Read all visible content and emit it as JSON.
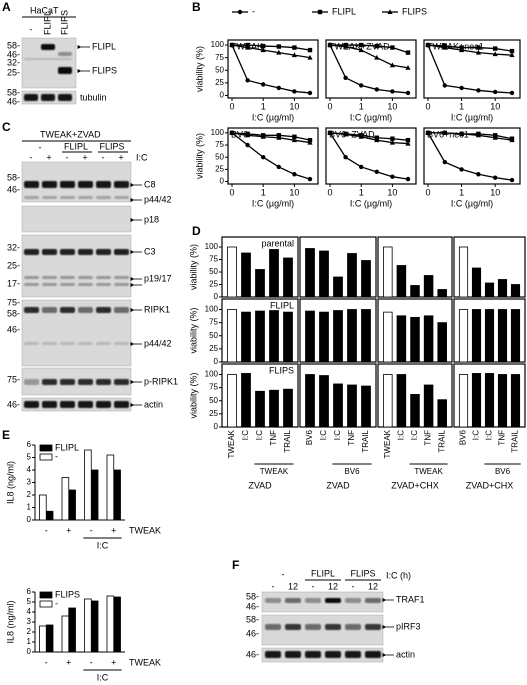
{
  "blot_a": {
    "panel": "A",
    "cell_line": "HaCaT",
    "lanes": [
      "-",
      "FLIPL",
      "FLIPS"
    ],
    "markers": [
      "58-",
      "46-",
      "32-",
      "25-",
      "58-",
      "46-"
    ],
    "labels": [
      "FLIPL",
      "FLIPS",
      "tubulin"
    ]
  },
  "blot_c": {
    "panel": "C",
    "treatment": "TWEAK+ZVAD",
    "lanes": [
      "-",
      "FLIPL",
      "FLIPS"
    ],
    "ic_lanes": [
      "-",
      "+",
      "-",
      "+",
      "-",
      "+"
    ],
    "ic_label": "I:C",
    "markers": [
      "58-",
      "46-",
      "32-",
      "25-",
      "17-",
      "75-",
      "58-",
      "46-",
      "75-",
      "46-"
    ],
    "labels": [
      "C8",
      "p44/42",
      "p18",
      "C3",
      "p19/17",
      "RIPK1",
      "p44/42",
      "p-RIPK1",
      "actin"
    ]
  },
  "blot_f": {
    "panel": "F",
    "lanes": [
      "-",
      "FLIPL",
      "FLIPS"
    ],
    "time_lanes": [
      "-",
      "12",
      "-",
      "12",
      "-",
      "12"
    ],
    "time_label": "I:C (h)",
    "markers": [
      "58-",
      "46-",
      "58-",
      "46-",
      "46-"
    ],
    "labels": [
      "TRAF1",
      "pIRF3",
      "actin"
    ]
  },
  "panels": {
    "b": "B",
    "d": "D",
    "e": "E"
  },
  "chart_data": [
    {
      "type": "line",
      "title": "TWEAK",
      "ylabel": "viability (%)",
      "xlabel": "I:C (µg/ml)",
      "categories": [
        "0",
        null,
        "1",
        null,
        "10",
        null
      ],
      "ylim": [
        -5,
        110
      ],
      "yticks": [
        0,
        25,
        50,
        75,
        100
      ],
      "series": [
        {
          "name": "-",
          "color": "#000000",
          "marker": "circle",
          "values": [
            100,
            30,
            22,
            15,
            8,
            5
          ]
        },
        {
          "name": "FLIPL",
          "color": "#000000",
          "marker": "square",
          "values": [
            100,
            100,
            98,
            97,
            95,
            90
          ]
        },
        {
          "name": "FLIPS",
          "color": "#000000",
          "marker": "triangle",
          "values": [
            100,
            95,
            90,
            85,
            80,
            75
          ]
        }
      ]
    },
    {
      "type": "line",
      "title": "TWEAK+ZVAD",
      "xlabel": "I:C (µg/ml)",
      "categories": [
        "0",
        null,
        "1",
        null,
        "10",
        null
      ],
      "ylim": [
        -5,
        110
      ],
      "series": [
        {
          "color": "#000000",
          "marker": "circle",
          "values": [
            100,
            35,
            20,
            12,
            8,
            5
          ]
        },
        {
          "color": "#000000",
          "marker": "square",
          "values": [
            100,
            100,
            100,
            98,
            95,
            85
          ]
        },
        {
          "color": "#000000",
          "marker": "triangle",
          "values": [
            100,
            97,
            90,
            75,
            60,
            55
          ]
        }
      ]
    },
    {
      "type": "line",
      "title": "TWEAK+nec1",
      "xlabel": "I:C (µg/ml)",
      "categories": [
        "0",
        null,
        "1",
        null,
        "10",
        null
      ],
      "ylim": [
        -5,
        110
      ],
      "series": [
        {
          "color": "#000000",
          "marker": "circle",
          "values": [
            100,
            20,
            15,
            10,
            7,
            5
          ]
        },
        {
          "color": "#000000",
          "marker": "square",
          "values": [
            100,
            98,
            95,
            95,
            93,
            88
          ]
        },
        {
          "color": "#000000",
          "marker": "triangle",
          "values": [
            100,
            95,
            90,
            85,
            82,
            80
          ]
        }
      ]
    },
    {
      "type": "line",
      "title": "BV6",
      "ylabel": "viability (%)",
      "xlabel": "I:C (µg/ml)",
      "categories": [
        "0",
        null,
        "1",
        null,
        "10",
        null
      ],
      "ylim": [
        -5,
        110
      ],
      "yticks": [
        0,
        25,
        50,
        75,
        100
      ],
      "series": [
        {
          "color": "#000000",
          "marker": "circle",
          "values": [
            100,
            75,
            50,
            30,
            15,
            5
          ]
        },
        {
          "color": "#000000",
          "marker": "square",
          "values": [
            100,
            98,
            95,
            95,
            92,
            85
          ]
        },
        {
          "color": "#000000",
          "marker": "triangle",
          "values": [
            100,
            95,
            92,
            90,
            85,
            80
          ]
        }
      ]
    },
    {
      "type": "line",
      "title": "BV6+ZVAD",
      "xlabel": "I:C (µg/ml)",
      "categories": [
        "0",
        null,
        "1",
        null,
        "10",
        null
      ],
      "ylim": [
        -5,
        110
      ],
      "series": [
        {
          "color": "#000000",
          "marker": "circle",
          "values": [
            100,
            50,
            30,
            20,
            10,
            5
          ]
        },
        {
          "color": "#000000",
          "marker": "square",
          "values": [
            100,
            98,
            95,
            90,
            88,
            85
          ]
        },
        {
          "color": "#000000",
          "marker": "triangle",
          "values": [
            100,
            97,
            92,
            85,
            80,
            78
          ]
        }
      ]
    },
    {
      "type": "line",
      "title": "BV6+nec1",
      "xlabel": "I:C (µg/ml)",
      "categories": [
        "0",
        null,
        "1",
        null,
        "10",
        null
      ],
      "ylim": [
        -5,
        110
      ],
      "series": [
        {
          "color": "#000000",
          "marker": "circle",
          "values": [
            100,
            40,
            25,
            15,
            8,
            3
          ]
        },
        {
          "color": "#000000",
          "marker": "square",
          "values": [
            100,
            100,
            98,
            98,
            95,
            88
          ]
        },
        {
          "color": "#000000",
          "marker": "triangle",
          "values": [
            100,
            100,
            98,
            95,
            90,
            85
          ]
        }
      ]
    },
    {
      "type": "bar",
      "ylabel": "viability (%)",
      "annotation": "parental",
      "ylim": [
        0,
        120
      ],
      "yticks": [
        0,
        25,
        50,
        75,
        100
      ],
      "values": [
        100,
        88,
        55,
        95,
        78
      ],
      "colors": [
        "#ffffff",
        "#000000",
        "#000000",
        "#000000",
        "#000000"
      ]
    },
    {
      "type": "bar",
      "ylim": [
        0,
        120
      ],
      "values": [
        97,
        92,
        40,
        87,
        73
      ],
      "colors": [
        "#000000",
        "#000000",
        "#000000",
        "#000000",
        "#000000"
      ]
    },
    {
      "type": "bar",
      "ylim": [
        0,
        120
      ],
      "values": [
        100,
        63,
        23,
        43,
        15
      ],
      "colors": [
        "#ffffff",
        "#000000",
        "#000000",
        "#000000",
        "#000000"
      ]
    },
    {
      "type": "bar",
      "ylim": [
        0,
        120
      ],
      "values": [
        100,
        58,
        28,
        35,
        25
      ],
      "colors": [
        "#ffffff",
        "#000000",
        "#000000",
        "#000000",
        "#000000"
      ]
    },
    {
      "type": "bar",
      "ylabel": "viability (%)",
      "annotation": "FLIPL",
      "ylim": [
        0,
        120
      ],
      "yticks": [
        0,
        25,
        50,
        75,
        100
      ],
      "values": [
        100,
        95,
        97,
        98,
        95
      ],
      "colors": [
        "#ffffff",
        "#000000",
        "#000000",
        "#000000",
        "#000000"
      ]
    },
    {
      "type": "bar",
      "ylim": [
        0,
        120
      ],
      "values": [
        97,
        95,
        98,
        100,
        100
      ],
      "colors": [
        "#000000",
        "#000000",
        "#000000",
        "#000000",
        "#000000"
      ]
    },
    {
      "type": "bar",
      "ylim": [
        0,
        120
      ],
      "values": [
        95,
        88,
        85,
        88,
        75
      ],
      "colors": [
        "#ffffff",
        "#000000",
        "#000000",
        "#000000",
        "#000000"
      ]
    },
    {
      "type": "bar",
      "ylim": [
        0,
        120
      ],
      "values": [
        100,
        100,
        100,
        100,
        100
      ],
      "colors": [
        "#ffffff",
        "#000000",
        "#000000",
        "#000000",
        "#000000"
      ]
    },
    {
      "type": "bar",
      "ylabel": "viability (%)",
      "annotation": "FLIPS",
      "ylim": [
        0,
        120
      ],
      "yticks": [
        0,
        25,
        50,
        75,
        100
      ],
      "values": [
        100,
        102,
        68,
        70,
        72
      ],
      "colors": [
        "#ffffff",
        "#000000",
        "#000000",
        "#000000",
        "#000000"
      ],
      "categories": [
        "TWEAK",
        "I:C",
        "I:C",
        "TNF",
        "TRAIL"
      ],
      "group_label": "TWEAK",
      "condition": "ZVAD"
    },
    {
      "type": "bar",
      "ylim": [
        0,
        120
      ],
      "values": [
        100,
        98,
        82,
        80,
        78
      ],
      "colors": [
        "#000000",
        "#000000",
        "#000000",
        "#000000",
        "#000000"
      ],
      "categories": [
        "BV6",
        "I:C",
        "I:C",
        "TNF",
        "TRAIL"
      ],
      "group_label": "BV6",
      "condition": "ZVAD"
    },
    {
      "type": "bar",
      "ylim": [
        0,
        120
      ],
      "values": [
        100,
        100,
        62,
        80,
        52
      ],
      "colors": [
        "#ffffff",
        "#000000",
        "#000000",
        "#000000",
        "#000000"
      ],
      "categories": [
        "TWEAK",
        "I:C",
        "I:C",
        "TNF",
        "TRAIL"
      ],
      "group_label": "TWEAK",
      "condition": "ZVAD+CHX"
    },
    {
      "type": "bar",
      "ylim": [
        0,
        120
      ],
      "values": [
        100,
        102,
        102,
        100,
        100
      ],
      "colors": [
        "#ffffff",
        "#000000",
        "#000000",
        "#000000",
        "#000000"
      ],
      "categories": [
        "BV6",
        "I:C",
        "I:C",
        "TNF",
        "TRAIL"
      ],
      "group_label": "BV6",
      "condition": "ZVAD+CHX"
    },
    {
      "type": "grouped_bar",
      "ylabel": "IL8 (ng/ml)",
      "ylim": [
        0,
        6
      ],
      "yticks": [
        0,
        1,
        2,
        3,
        4,
        5,
        6
      ],
      "categories": [
        "-",
        "+",
        "-",
        "+"
      ],
      "row_label": "TWEAK",
      "group_label": "I:C",
      "series": [
        {
          "name": "FLIPL",
          "color": "#000000",
          "values": [
            0.7,
            2.4,
            4.0,
            4.0
          ]
        },
        {
          "name": "-",
          "color": "#ffffff",
          "values": [
            2.0,
            3.4,
            5.6,
            5.2
          ]
        }
      ]
    },
    {
      "type": "grouped_bar",
      "ylabel": "IL8 (ng/ml)",
      "ylim": [
        0,
        6
      ],
      "yticks": [
        0,
        1,
        2,
        3,
        4,
        5,
        6
      ],
      "categories": [
        "-",
        "+",
        "-",
        "+"
      ],
      "row_label": "TWEAK",
      "group_label": "I:C",
      "series": [
        {
          "name": "FLIPS",
          "color": "#000000",
          "values": [
            2.7,
            4.4,
            5.1,
            5.5
          ]
        },
        {
          "name": "-",
          "color": "#ffffff",
          "values": [
            2.6,
            3.6,
            5.3,
            5.6
          ]
        }
      ]
    }
  ]
}
